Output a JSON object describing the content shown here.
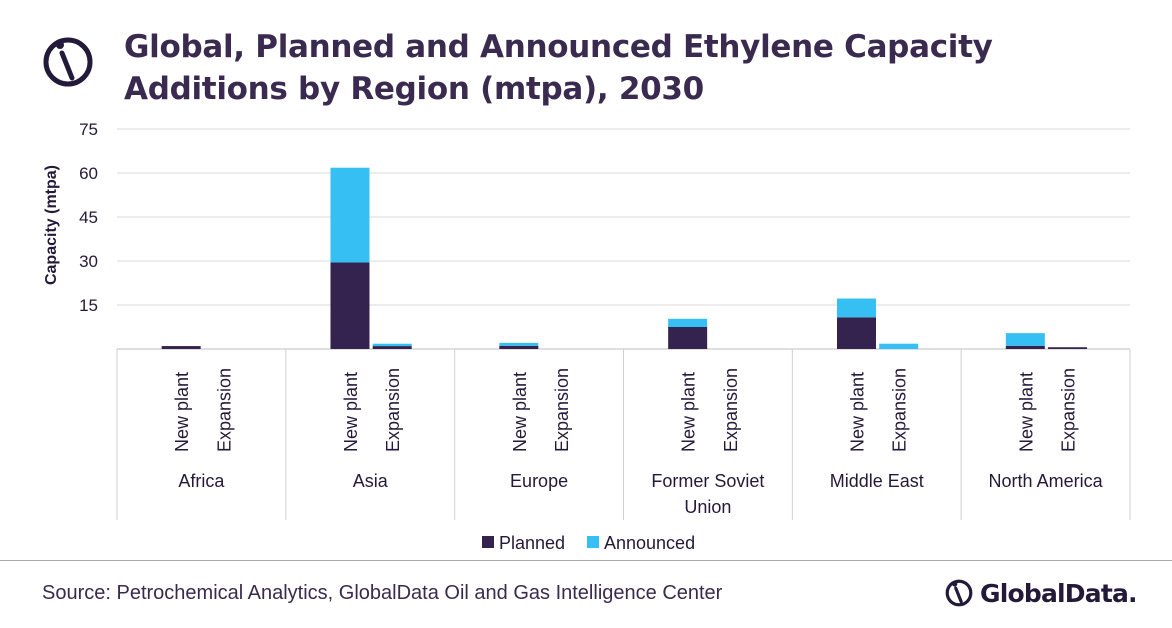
{
  "header": {
    "title": "Global, Planned and Announced Ethylene Capacity Additions by Region (mtpa), 2030"
  },
  "footer": {
    "source": "Source: Petrochemical Analytics, GlobalData Oil and Gas Intelligence Center"
  },
  "brand": {
    "name": "GlobalData."
  },
  "colors": {
    "planned": "#34234f",
    "announced": "#35bff3",
    "text": "#231a3a"
  },
  "chart_data": {
    "type": "bar",
    "stacked": true,
    "title": "Global, Planned and Announced Ethylene Capacity Additions by Region (mtpa), 2030",
    "xlabel": "",
    "ylabel": "Capacity (mtpa)",
    "ylim": [
      0,
      75
    ],
    "yticks": [
      15,
      30,
      45,
      60,
      75
    ],
    "grid": true,
    "legend": "bottom",
    "groups": [
      {
        "label": "Africa",
        "categories": [
          "New plant",
          "Expansion"
        ]
      },
      {
        "label": "Asia",
        "categories": [
          "New plant",
          "Expansion"
        ]
      },
      {
        "label": "Europe",
        "categories": [
          "New plant",
          "Expansion"
        ]
      },
      {
        "label": "Former Soviet Union",
        "categories": [
          "New plant",
          "Expansion"
        ]
      },
      {
        "label": "Middle East",
        "categories": [
          "New plant",
          "Expansion"
        ]
      },
      {
        "label": "North America",
        "categories": [
          "New plant",
          "Expansion"
        ]
      }
    ],
    "series": [
      {
        "name": "Planned",
        "color": "#34234f",
        "values": [
          [
            1.0,
            0
          ],
          [
            29.5,
            1.0
          ],
          [
            1.1,
            0
          ],
          [
            7.5,
            0
          ],
          [
            10.8,
            0
          ],
          [
            1.1,
            0.6
          ]
        ]
      },
      {
        "name": "Announced",
        "color": "#35bff3",
        "values": [
          [
            0,
            0
          ],
          [
            32.3,
            0.8
          ],
          [
            1.0,
            0
          ],
          [
            2.8,
            0
          ],
          [
            6.4,
            1.8
          ],
          [
            4.3,
            0
          ]
        ]
      }
    ]
  }
}
